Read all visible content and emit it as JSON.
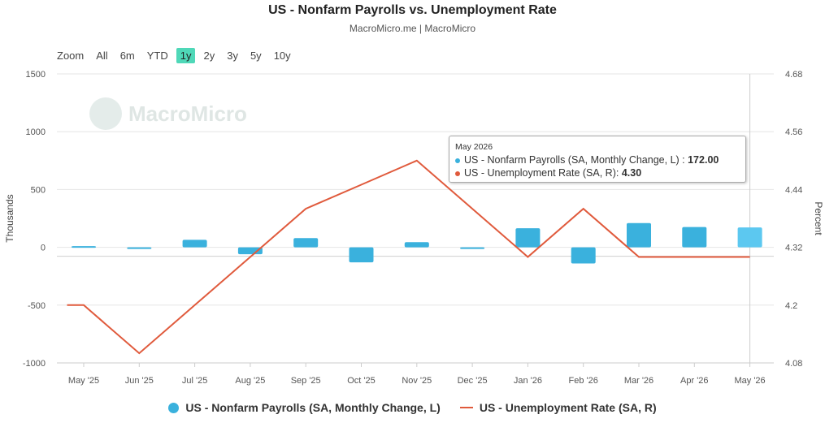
{
  "header": {
    "title": "US - Nonfarm Payrolls vs. Unemployment Rate",
    "subtitle": "MacroMicro.me | MacroMicro"
  },
  "watermark": {
    "text": "MacroMicro"
  },
  "zoom": {
    "label": "Zoom",
    "options": [
      "All",
      "6m",
      "YTD",
      "1y",
      "2y",
      "3y",
      "5y",
      "10y"
    ],
    "selected": "1y",
    "active_color": "#4fd8b8"
  },
  "tooltip": {
    "date": "May 2026",
    "series1_label": "US - Nonfarm Payrolls (SA, Monthly Change, L) : ",
    "series1_value": "172.00",
    "series2_label": "US - Unemployment Rate (SA, R): ",
    "series2_value": "4.30"
  },
  "chart_data": {
    "type": "bar+line",
    "categories": [
      "May '25",
      "Jun '25",
      "Jul '25",
      "Aug '25",
      "Sep '25",
      "Oct '25",
      "Nov '25",
      "Dec '25",
      "Jan '26",
      "Feb '26",
      "Mar '26",
      "Apr '26",
      "May '26"
    ],
    "series": [
      {
        "name": "US - Nonfarm Payrolls (SA, Monthly Change, L)",
        "type": "bar",
        "axis": "left",
        "color": "#3ab1dd",
        "highlight_color": "#5cc8f0",
        "values": [
          10,
          -10,
          65,
          -60,
          80,
          -130,
          45,
          -10,
          165,
          -140,
          210,
          175,
          172
        ]
      },
      {
        "name": "US - Unemployment Rate (SA, R)",
        "type": "line",
        "axis": "right",
        "color": "#e05a3c",
        "x_offsets": [
          -0.3,
          0,
          1,
          2,
          3,
          4,
          5,
          6,
          7,
          8,
          9,
          10,
          11,
          12
        ],
        "values": [
          4.2,
          4.2,
          4.1,
          4.2,
          4.3,
          4.4,
          4.45,
          4.5,
          4.4,
          4.3,
          4.4,
          4.3,
          4.3,
          4.3
        ]
      }
    ],
    "left_axis": {
      "label": "Thousands",
      "min": -1000,
      "max": 1500,
      "ticks": [
        1500,
        1000,
        500,
        0,
        -500,
        -1000
      ]
    },
    "right_axis": {
      "label": "Percent",
      "min": 4.08,
      "max": 4.68,
      "ticks": [
        "4.68",
        "4.56",
        "4.44",
        "4.32",
        "4.2",
        "4.08"
      ]
    },
    "grid": true,
    "legend": "bottom-center"
  }
}
